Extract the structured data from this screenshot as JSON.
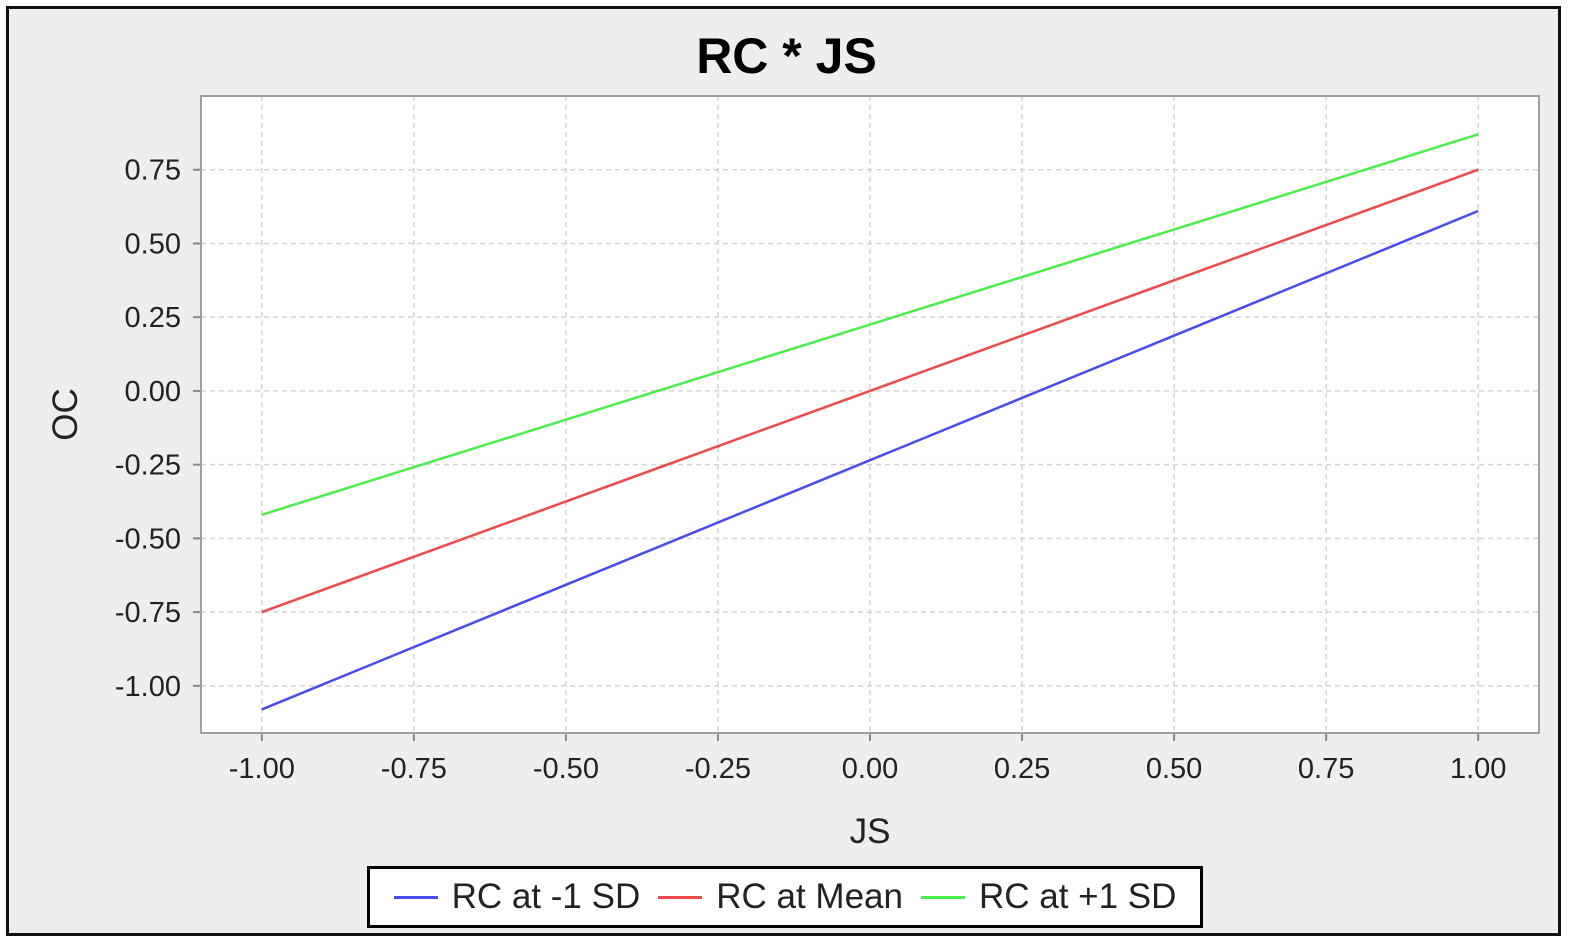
{
  "chart_data": {
    "type": "line",
    "title": "RC * JS",
    "xlabel": "JS",
    "ylabel": "OC",
    "xlim": [
      -1.1,
      1.1
    ],
    "ylim": [
      -1.16,
      1.0
    ],
    "xticks": [
      -1.0,
      -0.75,
      -0.5,
      -0.25,
      0.0,
      0.25,
      0.5,
      0.75,
      1.0
    ],
    "xtick_labels": [
      "-1.00",
      "-0.75",
      "-0.50",
      "-0.25",
      "0.00",
      "0.25",
      "0.50",
      "0.75",
      "1.00"
    ],
    "yticks": [
      0.75,
      0.5,
      0.25,
      0.0,
      -0.25,
      -0.5,
      -0.75,
      -1.0
    ],
    "ytick_labels": [
      "0.75",
      "0.50",
      "0.25",
      "0.00",
      "-0.25",
      "-0.50",
      "-0.75",
      "-1.00"
    ],
    "grid": true,
    "legend_position": "bottom",
    "series": [
      {
        "name": "RC at -1 SD",
        "color": "#4a4aee",
        "x": [
          -1.0,
          1.0
        ],
        "y": [
          -1.08,
          0.61
        ]
      },
      {
        "name": "RC at Mean",
        "color": "#ee4a4a",
        "x": [
          -1.0,
          1.0
        ],
        "y": [
          -0.75,
          0.75
        ]
      },
      {
        "name": "RC at +1 SD",
        "color": "#4aee4a",
        "x": [
          -1.0,
          1.0
        ],
        "y": [
          -0.42,
          0.87
        ]
      }
    ]
  }
}
